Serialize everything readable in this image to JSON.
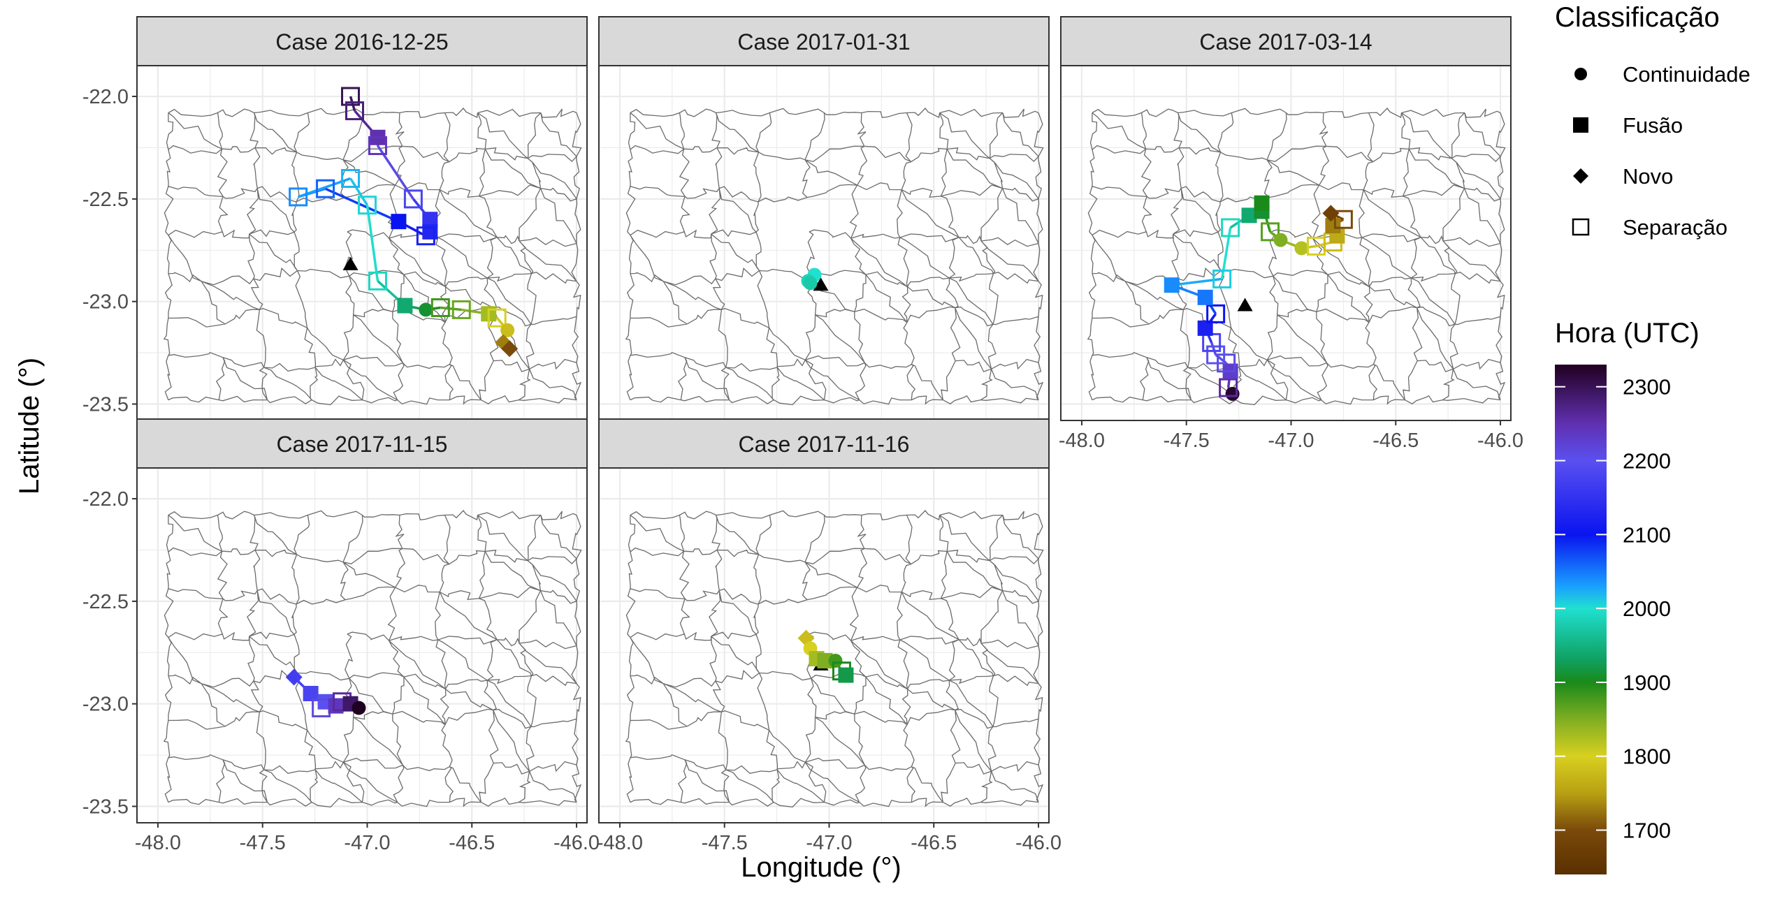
{
  "chart_data": {
    "type": "scatter",
    "xlabel": "Longitude (°)",
    "ylabel": "Latitude (°)",
    "xlim": [
      -48.1,
      -45.95
    ],
    "ylim": [
      -23.58,
      -21.85
    ],
    "x_ticks": [
      -48.0,
      -47.5,
      -47.0,
      -46.5,
      -46.0
    ],
    "x_tick_labels": [
      "-48.0",
      "-47.5",
      "-47.0",
      "-46.5",
      "-46.0"
    ],
    "y_ticks": [
      -22.0,
      -22.5,
      -23.0,
      -23.5
    ],
    "y_tick_labels": [
      "-22.0",
      "-22.5",
      "-23.0",
      "-23.5"
    ],
    "shape_legend": {
      "title": "Classificação",
      "items": [
        {
          "label": "Continuidade",
          "shape": "circle"
        },
        {
          "label": "Fusão",
          "shape": "square-filled"
        },
        {
          "label": "Novo",
          "shape": "diamond"
        },
        {
          "label": "Separação",
          "shape": "square-open"
        }
      ]
    },
    "color_legend": {
      "title": "Hora (UTC)",
      "min": 1640,
      "max": 2330,
      "ticks": [
        2300,
        2200,
        2100,
        2000,
        1900,
        1800,
        1700
      ],
      "tick_labels": [
        "2300",
        "2200",
        "2100",
        "2000",
        "1900",
        "1800",
        "1700"
      ],
      "stops": [
        {
          "v": 1640,
          "c": "#5a3000"
        },
        {
          "v": 1700,
          "c": "#7a4a0a"
        },
        {
          "v": 1750,
          "c": "#b8a013"
        },
        {
          "v": 1800,
          "c": "#d8d020"
        },
        {
          "v": 1850,
          "c": "#7fae22"
        },
        {
          "v": 1900,
          "c": "#1a8a1a"
        },
        {
          "v": 1930,
          "c": "#0fa060"
        },
        {
          "v": 2000,
          "c": "#20e0d0"
        },
        {
          "v": 2030,
          "c": "#1aa0ff"
        },
        {
          "v": 2100,
          "c": "#0a14f0"
        },
        {
          "v": 2200,
          "c": "#5a50f0"
        },
        {
          "v": 2250,
          "c": "#6030b0"
        },
        {
          "v": 2330,
          "c": "#200020"
        }
      ]
    },
    "panels": [
      {
        "title": "Case 2016-12-25",
        "origin": [
          -47.08,
          -22.82
        ],
        "points": [
          {
            "x": -47.08,
            "y": -22.0,
            "t": 2300,
            "shape": "square-open"
          },
          {
            "x": -47.06,
            "y": -22.07,
            "t": 2280,
            "shape": "square-open"
          },
          {
            "x": -46.95,
            "y": -22.2,
            "t": 2250,
            "shape": "square-filled"
          },
          {
            "x": -46.95,
            "y": -22.24,
            "t": 2240,
            "shape": "square-open"
          },
          {
            "x": -46.78,
            "y": -22.5,
            "t": 2180,
            "shape": "square-open"
          },
          {
            "x": -46.7,
            "y": -22.6,
            "t": 2150,
            "shape": "square-filled"
          },
          {
            "x": -46.7,
            "y": -22.66,
            "t": 2130,
            "shape": "square-filled"
          },
          {
            "x": -46.72,
            "y": -22.68,
            "t": 2120,
            "shape": "square-open"
          },
          {
            "x": -46.85,
            "y": -22.61,
            "t": 2100,
            "shape": "square-filled"
          },
          {
            "x": -47.2,
            "y": -22.45,
            "t": 2060,
            "shape": "square-open"
          },
          {
            "x": -47.33,
            "y": -22.49,
            "t": 2040,
            "shape": "square-open"
          },
          {
            "x": -47.08,
            "y": -22.4,
            "t": 2020,
            "shape": "square-open"
          },
          {
            "x": -47.0,
            "y": -22.53,
            "t": 2005,
            "shape": "square-open"
          },
          {
            "x": -46.95,
            "y": -22.9,
            "t": 1990,
            "shape": "square-open"
          },
          {
            "x": -46.82,
            "y": -23.02,
            "t": 1940,
            "shape": "square-filled"
          },
          {
            "x": -46.72,
            "y": -23.04,
            "t": 1910,
            "shape": "circle"
          },
          {
            "x": -46.65,
            "y": -23.03,
            "t": 1880,
            "shape": "square-open"
          },
          {
            "x": -46.55,
            "y": -23.04,
            "t": 1860,
            "shape": "square-open"
          },
          {
            "x": -46.42,
            "y": -23.06,
            "t": 1830,
            "shape": "square-filled"
          },
          {
            "x": -46.38,
            "y": -23.08,
            "t": 1800,
            "shape": "square-open"
          },
          {
            "x": -46.33,
            "y": -23.14,
            "t": 1780,
            "shape": "circle"
          },
          {
            "x": -46.35,
            "y": -23.2,
            "t": 1730,
            "shape": "diamond"
          },
          {
            "x": -46.32,
            "y": -23.23,
            "t": 1700,
            "shape": "diamond"
          }
        ]
      },
      {
        "title": "Case 2017-01-31",
        "origin": [
          -47.04,
          -22.92
        ],
        "points": [
          {
            "x": -47.07,
            "y": -22.87,
            "t": 2000,
            "shape": "circle"
          },
          {
            "x": -47.1,
            "y": -22.9,
            "t": 1985,
            "shape": "circle"
          },
          {
            "x": -47.09,
            "y": -22.91,
            "t": 1975,
            "shape": "circle"
          }
        ]
      },
      {
        "title": "Case 2017-03-14",
        "origin": [
          -47.22,
          -23.02
        ],
        "points": [
          {
            "x": -47.28,
            "y": -23.45,
            "t": 2320,
            "shape": "circle"
          },
          {
            "x": -47.3,
            "y": -23.42,
            "t": 2260,
            "shape": "square-open"
          },
          {
            "x": -47.29,
            "y": -23.34,
            "t": 2230,
            "shape": "square-filled"
          },
          {
            "x": -47.31,
            "y": -23.3,
            "t": 2210,
            "shape": "square-open"
          },
          {
            "x": -47.36,
            "y": -23.26,
            "t": 2200,
            "shape": "square-open"
          },
          {
            "x": -47.38,
            "y": -23.2,
            "t": 2180,
            "shape": "square-open"
          },
          {
            "x": -47.41,
            "y": -23.13,
            "t": 2120,
            "shape": "square-filled"
          },
          {
            "x": -47.36,
            "y": -23.06,
            "t": 2100,
            "shape": "square-open"
          },
          {
            "x": -47.41,
            "y": -22.98,
            "t": 2050,
            "shape": "square-filled"
          },
          {
            "x": -47.57,
            "y": -22.92,
            "t": 2040,
            "shape": "square-filled"
          },
          {
            "x": -47.33,
            "y": -22.89,
            "t": 2010,
            "shape": "square-open"
          },
          {
            "x": -47.29,
            "y": -22.64,
            "t": 1990,
            "shape": "square-open"
          },
          {
            "x": -47.2,
            "y": -22.58,
            "t": 1940,
            "shape": "square-filled"
          },
          {
            "x": -47.14,
            "y": -22.56,
            "t": 1910,
            "shape": "square-filled"
          },
          {
            "x": -47.14,
            "y": -22.52,
            "t": 1900,
            "shape": "square-filled"
          },
          {
            "x": -47.1,
            "y": -22.66,
            "t": 1870,
            "shape": "square-open"
          },
          {
            "x": -47.05,
            "y": -22.7,
            "t": 1850,
            "shape": "circle"
          },
          {
            "x": -46.95,
            "y": -22.74,
            "t": 1820,
            "shape": "circle"
          },
          {
            "x": -46.88,
            "y": -22.73,
            "t": 1800,
            "shape": "square-open"
          },
          {
            "x": -46.8,
            "y": -22.71,
            "t": 1780,
            "shape": "square-open"
          },
          {
            "x": -46.78,
            "y": -22.68,
            "t": 1760,
            "shape": "square-filled"
          },
          {
            "x": -46.8,
            "y": -22.63,
            "t": 1730,
            "shape": "square-filled"
          },
          {
            "x": -46.75,
            "y": -22.6,
            "t": 1700,
            "shape": "square-open"
          },
          {
            "x": -46.81,
            "y": -22.57,
            "t": 1680,
            "shape": "diamond"
          }
        ]
      },
      {
        "title": "Case 2017-11-15",
        "origin": null,
        "points": [
          {
            "x": -47.35,
            "y": -22.87,
            "t": 2170,
            "shape": "diamond"
          },
          {
            "x": -47.27,
            "y": -22.95,
            "t": 2180,
            "shape": "square-filled"
          },
          {
            "x": -47.2,
            "y": -22.99,
            "t": 2200,
            "shape": "square-filled"
          },
          {
            "x": -47.22,
            "y": -23.02,
            "t": 2210,
            "shape": "square-open"
          },
          {
            "x": -47.15,
            "y": -23.01,
            "t": 2240,
            "shape": "square-filled"
          },
          {
            "x": -47.12,
            "y": -22.99,
            "t": 2260,
            "shape": "square-open"
          },
          {
            "x": -47.08,
            "y": -23.0,
            "t": 2290,
            "shape": "square-filled"
          },
          {
            "x": -47.04,
            "y": -23.02,
            "t": 2330,
            "shape": "circle"
          }
        ]
      },
      {
        "title": "Case 2017-11-16",
        "origin": [
          -47.04,
          -22.81
        ],
        "points": [
          {
            "x": -47.11,
            "y": -22.68,
            "t": 1780,
            "shape": "diamond"
          },
          {
            "x": -47.09,
            "y": -22.73,
            "t": 1800,
            "shape": "circle"
          },
          {
            "x": -47.06,
            "y": -22.78,
            "t": 1830,
            "shape": "square-filled"
          },
          {
            "x": -47.02,
            "y": -22.79,
            "t": 1850,
            "shape": "square-filled"
          },
          {
            "x": -46.97,
            "y": -22.79,
            "t": 1880,
            "shape": "circle"
          },
          {
            "x": -46.94,
            "y": -22.84,
            "t": 1900,
            "shape": "square-open"
          },
          {
            "x": -46.92,
            "y": -22.86,
            "t": 1920,
            "shape": "square-filled"
          }
        ]
      }
    ]
  }
}
